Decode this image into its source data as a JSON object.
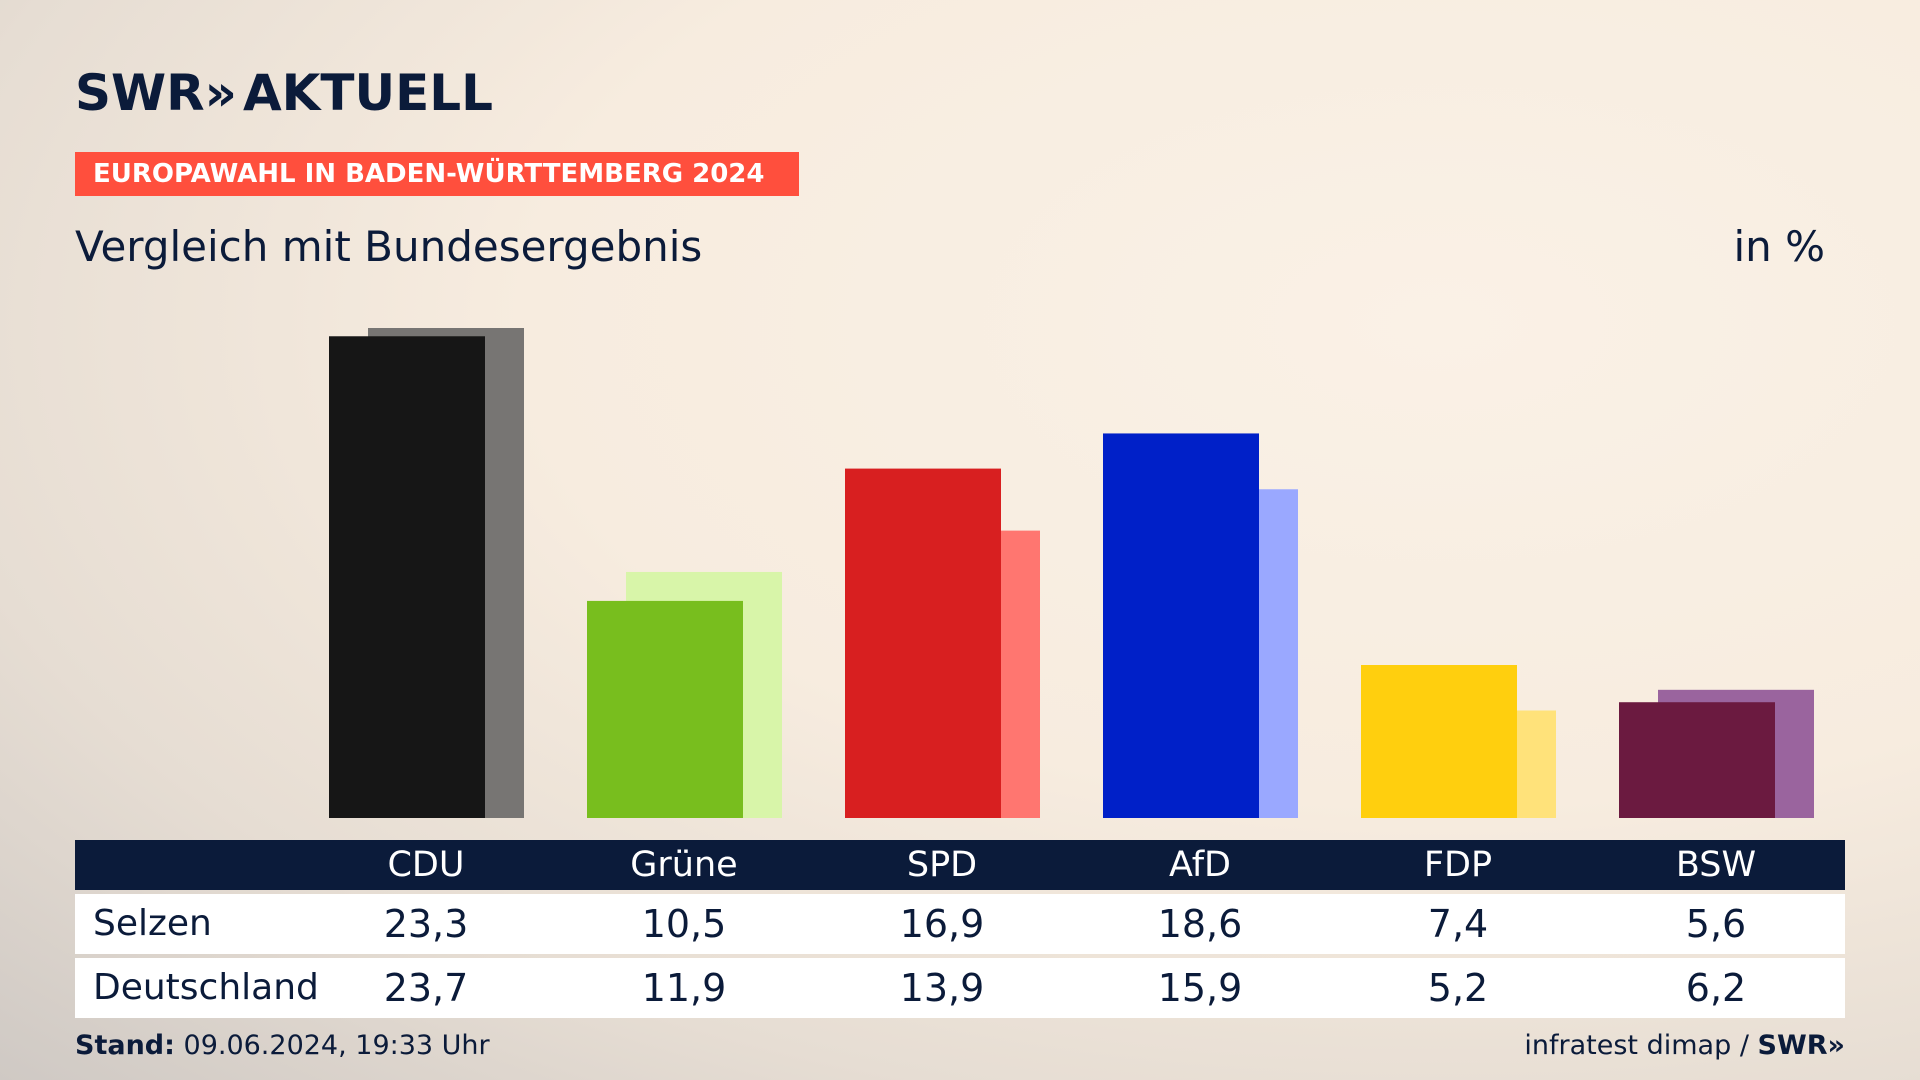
{
  "brand": {
    "logo_text": "SWR",
    "logo_chevron": "»",
    "logo_suffix": "AKTUELL"
  },
  "banner": "EUROPAWAHL IN BADEN-WÜRTTEMBERG 2024",
  "subtitle": "Vergleich mit Bundesergebnis",
  "unit": "in %",
  "chart_data": {
    "type": "bar",
    "title": "",
    "categories": [
      "CDU",
      "Grüne",
      "SPD",
      "AfD",
      "FDP",
      "BSW"
    ],
    "series": [
      {
        "name": "Selzen",
        "values": [
          23.3,
          10.5,
          16.9,
          18.6,
          7.4,
          5.6
        ],
        "colors": [
          "#161616",
          "#78be1e",
          "#d81f20",
          "#0020c8",
          "#ffcf0e",
          "#6b1a40"
        ]
      },
      {
        "name": "Deutschland",
        "values": [
          23.7,
          11.9,
          13.9,
          15.9,
          5.2,
          6.2
        ],
        "colors": [
          "#777573",
          "#d8f5a9",
          "#ff7670",
          "#9aa8ff",
          "#ffe27a",
          "#9a649e"
        ]
      }
    ],
    "ylim": [
      0,
      23.7
    ],
    "grid": false,
    "legend": "table-below"
  },
  "table": {
    "rows": [
      {
        "label": "Selzen",
        "values": [
          "23,3",
          "10,5",
          "16,9",
          "18,6",
          "7,4",
          "5,6"
        ]
      },
      {
        "label": "Deutschland",
        "values": [
          "23,7",
          "11,9",
          "13,9",
          "15,9",
          "5,2",
          "6,2"
        ]
      }
    ]
  },
  "footer": {
    "stand_label": "Stand:",
    "stand_value": "09.06.2024, 19:33 Uhr",
    "source": "infratest dimap /",
    "source_brand": "SWR",
    "source_chevron": "»"
  }
}
